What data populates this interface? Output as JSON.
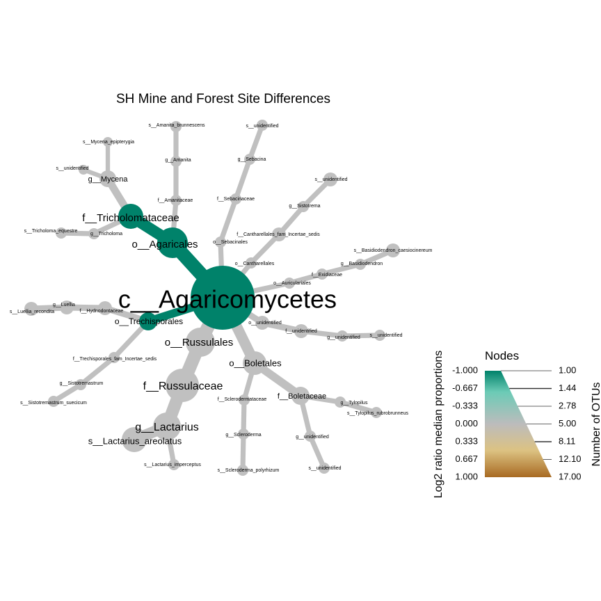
{
  "title": "SH Mine and Forest Site Differences",
  "colors": {
    "background": "#ffffff",
    "node_neutral": "#c0c0c0",
    "node_teal": "#00826a",
    "gradient": [
      "#00826a",
      "#6ccbb6",
      "#bcbcbc",
      "#dcc282",
      "#a86a22"
    ]
  },
  "tree": {
    "root": "c__Agaricomycetes",
    "nodes": [
      {
        "id": "c__Agaricomycetes",
        "parent": null,
        "color": "teal"
      },
      {
        "id": "o__Agaricales",
        "parent": "c__Agaricomycetes",
        "color": "teal"
      },
      {
        "id": "f__Tricholomataceae",
        "parent": "o__Agaricales",
        "color": "teal"
      },
      {
        "id": "g__Mycena",
        "parent": "f__Tricholomataceae",
        "color": "neutral"
      },
      {
        "id": "s__Mycena_epipterygia",
        "parent": "g__Mycena",
        "color": "neutral"
      },
      {
        "id": "s__unidentified (Mycena)",
        "label": "s__unidentified",
        "parent": "g__Mycena",
        "color": "neutral"
      },
      {
        "id": "g__Tricholoma",
        "parent": "f__Tricholomataceae",
        "color": "neutral"
      },
      {
        "id": "s__Tricholoma_equestre",
        "parent": "g__Tricholoma",
        "color": "neutral"
      },
      {
        "id": "f__Amanitaceae",
        "parent": "o__Agaricales",
        "color": "neutral"
      },
      {
        "id": "g__Amanita",
        "parent": "f__Amanitaceae",
        "color": "neutral"
      },
      {
        "id": "s__Amanita_brunnescens",
        "parent": "g__Amanita",
        "color": "neutral"
      },
      {
        "id": "o__Sebacinales",
        "parent": "c__Agaricomycetes",
        "color": "neutral"
      },
      {
        "id": "f__Sebacinaceae",
        "parent": "o__Sebacinales",
        "color": "neutral"
      },
      {
        "id": "g__Sebacina",
        "parent": "f__Sebacinaceae",
        "color": "neutral"
      },
      {
        "id": "s__unidentified (Sebacina)",
        "label": "s__unidentified",
        "parent": "g__Sebacina",
        "color": "neutral"
      },
      {
        "id": "o__Cantharellales",
        "parent": "c__Agaricomycetes",
        "color": "neutral"
      },
      {
        "id": "f__Cantharellales_fam_Incertae_sedis",
        "parent": "o__Cantharellales",
        "color": "neutral"
      },
      {
        "id": "g__Sistotrema",
        "parent": "f__Cantharellales_fam_Incertae_sedis",
        "color": "neutral"
      },
      {
        "id": "s__unidentified (Sistotrema)",
        "label": "s__unidentified",
        "parent": "g__Sistotrema",
        "color": "neutral"
      },
      {
        "id": "o__Auriculariales",
        "parent": "c__Agaricomycetes",
        "color": "neutral"
      },
      {
        "id": "f__Exidiaceae",
        "parent": "o__Auriculariales",
        "color": "neutral"
      },
      {
        "id": "g__Basidiodendron",
        "parent": "f__Exidiaceae",
        "color": "neutral"
      },
      {
        "id": "s__Basidiodendron_caesiocinereum",
        "parent": "g__Basidiodendron",
        "color": "neutral"
      },
      {
        "id": "o__unidentified",
        "parent": "c__Agaricomycetes",
        "color": "neutral"
      },
      {
        "id": "f__unidentified",
        "parent": "o__unidentified",
        "color": "neutral"
      },
      {
        "id": "g__unidentified (o__unidentified)",
        "label": "g__unidentified",
        "parent": "f__unidentified",
        "color": "neutral"
      },
      {
        "id": "s__unidentified (o__unidentified)",
        "label": "s__unidentified",
        "parent": "g__unidentified (o__unidentified)",
        "color": "neutral"
      },
      {
        "id": "o__Boletales",
        "parent": "c__Agaricomycetes",
        "color": "neutral"
      },
      {
        "id": "f__Boletaceae",
        "parent": "o__Boletales",
        "color": "neutral"
      },
      {
        "id": "g__Tylopilus",
        "parent": "f__Boletaceae",
        "color": "neutral"
      },
      {
        "id": "s__Tylopilus_rubrobrunneus",
        "parent": "g__Tylopilus",
        "color": "neutral"
      },
      {
        "id": "g__unidentified (Boletaceae)",
        "label": "g__unidentified",
        "parent": "f__Boletaceae",
        "color": "neutral"
      },
      {
        "id": "s__unidentified (Boletaceae)",
        "label": "s__unidentified",
        "parent": "g__unidentified (Boletaceae)",
        "color": "neutral"
      },
      {
        "id": "f__Sclerodermataceae",
        "parent": "o__Boletales",
        "color": "neutral"
      },
      {
        "id": "g__Scleroderma",
        "parent": "f__Sclerodermataceae",
        "color": "neutral"
      },
      {
        "id": "s__Scleroderma_polyrhizum",
        "parent": "g__Scleroderma",
        "color": "neutral"
      },
      {
        "id": "o__Russulales",
        "parent": "c__Agaricomycetes",
        "color": "neutral"
      },
      {
        "id": "f__Russulaceae",
        "parent": "o__Russulales",
        "color": "neutral"
      },
      {
        "id": "g__Lactarius",
        "parent": "f__Russulaceae",
        "color": "neutral"
      },
      {
        "id": "s__Lactarius_areolatus",
        "parent": "g__Lactarius",
        "color": "neutral"
      },
      {
        "id": "s__Lactarius_imperceptus",
        "parent": "g__Lactarius",
        "color": "neutral"
      },
      {
        "id": "o__Trechisporales",
        "parent": "c__Agaricomycetes",
        "color": "teal"
      },
      {
        "id": "f__Trechisporales_fam_Incertae_sedis",
        "parent": "o__Trechisporales",
        "color": "neutral"
      },
      {
        "id": "g__Sistotremastrum",
        "parent": "f__Trechisporales_fam_Incertae_sedis",
        "color": "neutral"
      },
      {
        "id": "s__Sistotremastrum_suecicum",
        "parent": "g__Sistotremastrum",
        "color": "neutral"
      },
      {
        "id": "f__Hydnodontaceae",
        "parent": "o__Trechisporales",
        "color": "neutral"
      },
      {
        "id": "g__Luellia",
        "parent": "f__Hydnodontaceae",
        "color": "neutral"
      },
      {
        "id": "s__Luellia_recondita",
        "parent": "g__Luellia",
        "color": "neutral"
      }
    ]
  },
  "legend": {
    "title": "Nodes",
    "color_axis_title": "Log2 ratio median proportions",
    "color_ticks": [
      "-1.000",
      "-0.667",
      "-0.333",
      "0.000",
      "0.333",
      "0.667",
      "1.000"
    ],
    "size_axis_title": "Number of OTUs",
    "size_ticks": [
      "1.00",
      "1.44",
      "2.78",
      "5.00",
      "8.11",
      "12.10",
      "17.00"
    ]
  }
}
